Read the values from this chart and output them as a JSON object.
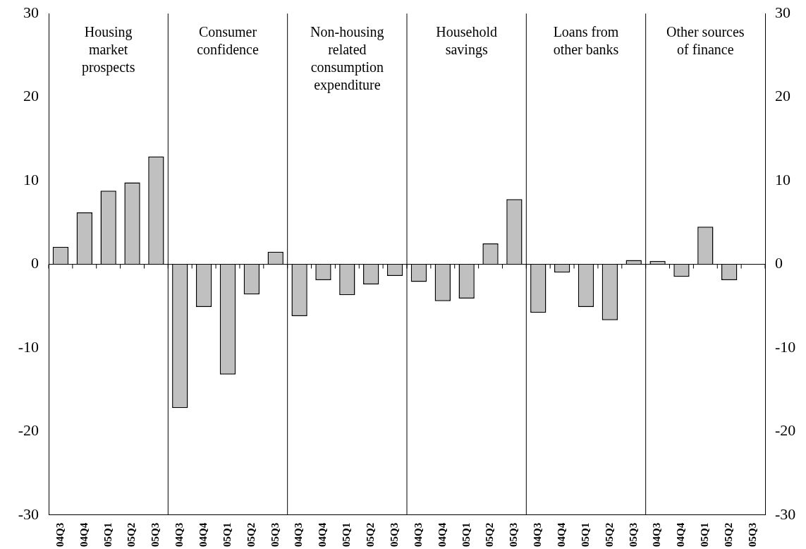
{
  "chart_data": {
    "type": "bar",
    "categories": [
      "04Q3",
      "04Q4",
      "05Q1",
      "05Q2",
      "05Q3",
      "04Q3",
      "04Q4",
      "05Q1",
      "05Q2",
      "05Q3",
      "04Q3",
      "04Q4",
      "05Q1",
      "05Q2",
      "05Q3",
      "04Q3",
      "04Q4",
      "05Q1",
      "05Q2",
      "05Q3",
      "04Q3",
      "04Q4",
      "05Q1",
      "05Q2",
      "05Q3",
      "04Q3",
      "04Q4",
      "05Q1",
      "05Q2",
      "05Q3"
    ],
    "values": [
      2.1,
      6.2,
      8.8,
      9.8,
      12.9,
      -17.2,
      -5.1,
      -13.2,
      -3.6,
      1.5,
      -6.2,
      -1.9,
      -3.7,
      -2.4,
      -1.4,
      -2.1,
      -4.4,
      -4.1,
      2.5,
      7.8,
      -5.8,
      -1.0,
      -5.1,
      -6.7,
      0.5,
      0.4,
      -1.5,
      4.5,
      -1.9,
      null
    ],
    "color": "#c0c0c0",
    "ylim": [
      -30,
      30
    ],
    "yticks": [
      -30,
      -20,
      -10,
      0,
      10,
      20,
      30
    ],
    "y2lim": [
      -30,
      30
    ],
    "y2ticks": [
      -30,
      -20,
      -10,
      0,
      10,
      20,
      30
    ],
    "grid": false,
    "ref_lines": [
      {
        "axis": "y",
        "value": 0,
        "color": "#000000"
      }
    ],
    "annotations": [
      "Housing\nmarket\nprospects",
      "Consumer\nconfidence",
      "Non-housing\nrelated\nconsumption\nexpenditure",
      "Household\nsavings",
      "Loans from\nother banks",
      "Other sources\nof finance"
    ]
  }
}
